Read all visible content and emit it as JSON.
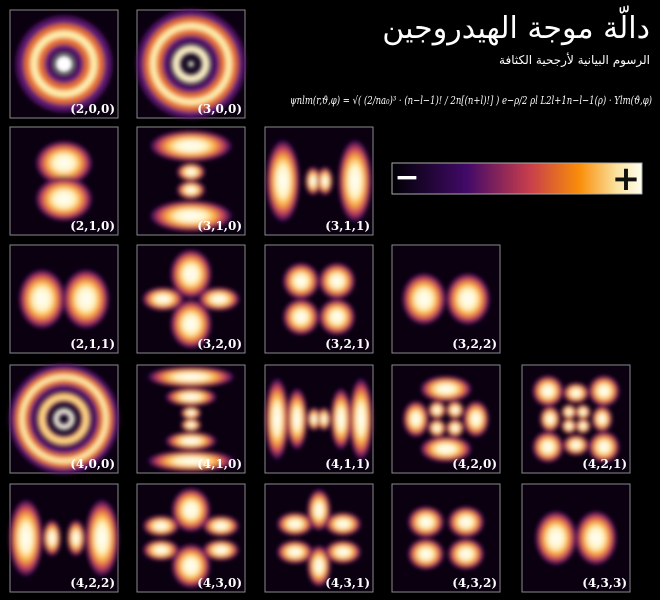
{
  "header": {
    "title": "دالّة موجة الهيدروجين",
    "subtitle": "الرسوم البيانية لأرجحية الكثافة",
    "formula": "ψnlm(r,ϑ,φ) = √( (2/na₀)³ · (n−l−1)! / 2n[(n+l)!] ) e−ρ/2 ρl L2l+1n−l−1(ρ) · Ylm(ϑ,φ)"
  },
  "colorbar": {
    "min_label": "−",
    "max_label": "+"
  },
  "panels": [
    {
      "label": "(2,0,0)"
    },
    {
      "label": "(3,0,0)"
    },
    {
      "label": "(2,1,0)"
    },
    {
      "label": "(3,1,0)"
    },
    {
      "label": "(3,1,1)"
    },
    {
      "label": "(2,1,1)"
    },
    {
      "label": "(3,2,0)"
    },
    {
      "label": "(3,2,1)"
    },
    {
      "label": "(3,2,2)"
    },
    {
      "label": "(4,0,0)"
    },
    {
      "label": "(4,1,0)"
    },
    {
      "label": "(4,1,1)"
    },
    {
      "label": "(4,2,0)"
    },
    {
      "label": "(4,2,1)"
    },
    {
      "label": "(4,2,2)"
    },
    {
      "label": "(4,3,0)"
    },
    {
      "label": "(4,3,1)"
    },
    {
      "label": "(4,3,2)"
    },
    {
      "label": "(4,3,3)"
    }
  ]
}
